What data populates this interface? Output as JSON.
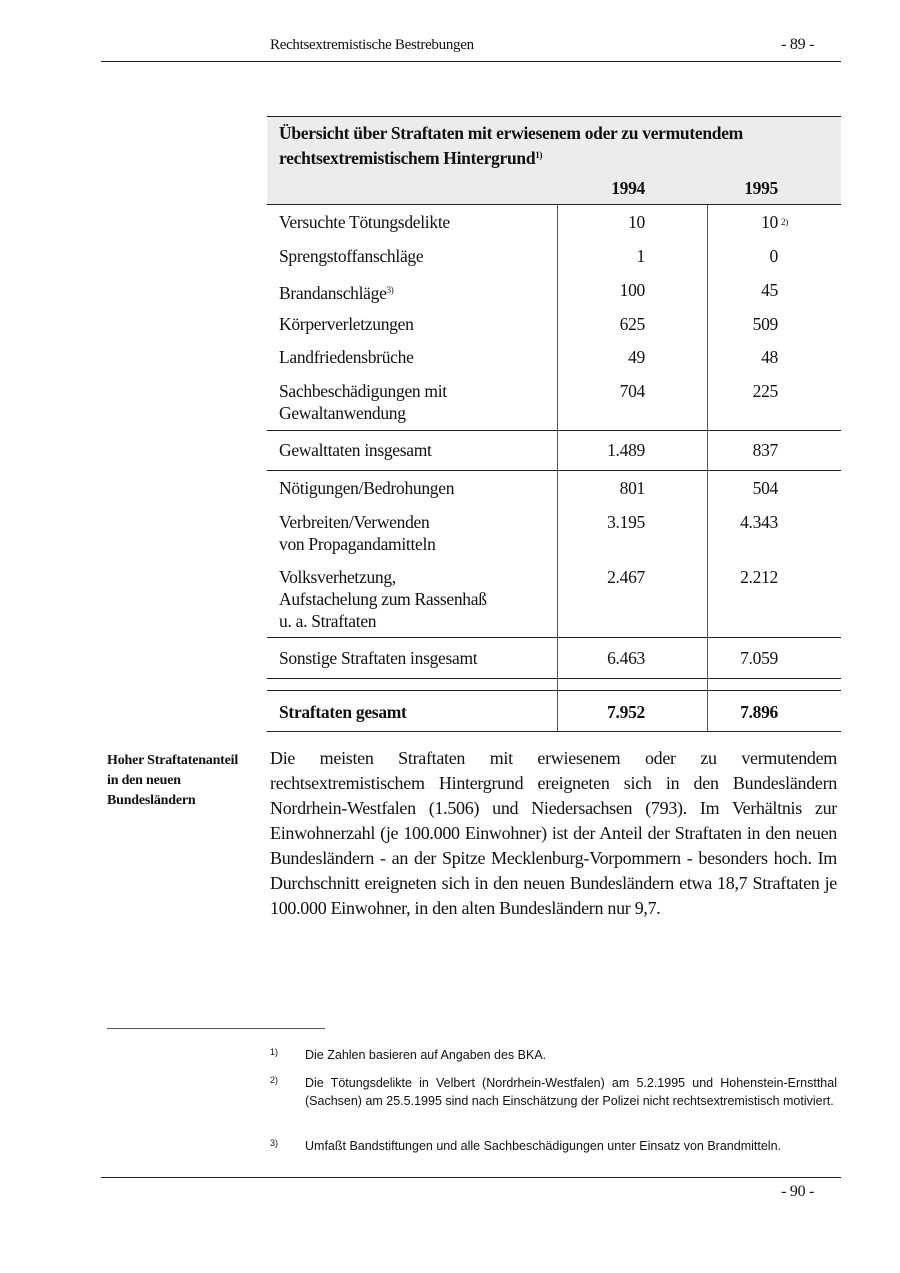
{
  "header": {
    "title": "Rechtsextremistische Bestrebungen",
    "page": "- 89 -"
  },
  "table": {
    "title": "Übersicht über Straftaten mit erwiesenem oder zu vermutendem rechtsextremistischem Hintergrund",
    "title_line1": "Übersicht über Straftaten mit erwiesenem oder zu vermutendem",
    "title_line2": "rechtsextremistischem Hintergrund",
    "title_note": "1)",
    "columns": [
      "1994",
      "1995"
    ],
    "rows": [
      {
        "label": "Versuchte Tötungsdelikte",
        "v1994": "10",
        "v1995": "10",
        "note1995": "2)"
      },
      {
        "label": "Sprengstoffanschläge",
        "v1994": "1",
        "v1995": "0"
      },
      {
        "label": "Brandanschläge",
        "label_note": "3)",
        "v1994": "100",
        "v1995": "45"
      },
      {
        "label": "Körperverletzungen",
        "v1994": "625",
        "v1995": "509"
      },
      {
        "label": "Landfriedensbrüche",
        "v1994": "49",
        "v1995": "48"
      },
      {
        "label_lines": [
          "Sachbeschädigungen mit",
          "Gewaltanwendung"
        ],
        "v1994": "704",
        "v1995": "225"
      },
      {
        "label": "Gewalttaten insgesamt",
        "v1994": "1.489",
        "v1995": "837"
      },
      {
        "label": "Nötigungen/Bedrohungen",
        "v1994": "801",
        "v1995": "504"
      },
      {
        "label_lines": [
          "Verbreiten/Verwenden",
          "von Propagandamitteln"
        ],
        "v1994": "3.195",
        "v1995": "4.343"
      },
      {
        "label_lines": [
          "Volksverhetzung,",
          "Aufstachelung zum Rassenhaß",
          "u. a. Straftaten"
        ],
        "v1994": "2.467",
        "v1995": "2.212"
      },
      {
        "label": "Sonstige Straftaten insgesamt",
        "v1994": "6.463",
        "v1995": "7.059"
      },
      {
        "label": "Straftaten gesamt",
        "v1994": "7.952",
        "v1995": "7.896"
      }
    ]
  },
  "side_note": [
    "Hoher Straftatenanteil",
    "in den neuen",
    "Bundesländern"
  ],
  "paragraph": "Die meisten Straftaten mit erwiesenem oder zu vermutendem rechtsextremistischem Hintergrund ereigneten sich in den Bundesländern Nordrhein-Westfalen (1.506) und Niedersachsen (793). Im Verhältnis zur Einwohnerzahl (je 100.000 Einwohner) ist der Anteil der Straftaten in den neuen Bundesländern - an der Spitze Mecklenburg-Vorpommern - besonders hoch. Im Durchschnitt ereigneten sich in den neuen Bundesländern etwa 18,7 Straftaten je 100.000 Einwohner, in den alten Bundesländern nur 9,7.",
  "footnotes": [
    {
      "mark": "1)",
      "text": "Die Zahlen basieren auf Angaben des BKA."
    },
    {
      "mark": "2)",
      "text": "Die Tötungsdelikte in Velbert (Nordrhein-Westfalen) am 5.2.1995 und Hohenstein-Ernstthal (Sachsen) am 25.5.1995 sind nach Einschätzung der Polizei nicht rechtsextremistisch motiviert."
    },
    {
      "mark": "3)",
      "text": "Umfaßt Bandstiftungen und alle Sachbeschädigungen unter Einsatz von Brandmitteln."
    }
  ],
  "footer": {
    "page": "- 90 -"
  }
}
